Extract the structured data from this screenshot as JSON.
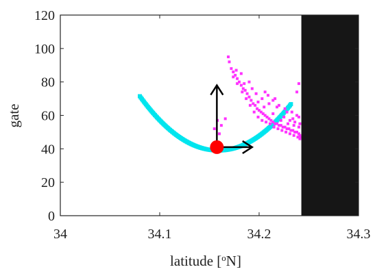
{
  "chart_data": {
    "type": "scatter",
    "xlabel": "latitude [",
    "xlabel_sup": "o",
    "xlabel_suffix": "N]",
    "ylabel": "gate",
    "xlim": [
      34,
      34.3
    ],
    "ylim": [
      0,
      120
    ],
    "xticks": [
      "34",
      "34.1",
      "34.2",
      "34.3"
    ],
    "xtick_values": [
      34,
      34.1,
      34.2,
      34.3
    ],
    "yticks": [
      "0",
      "20",
      "40",
      "60",
      "80",
      "100",
      "120"
    ],
    "ytick_values": [
      0,
      20,
      40,
      60,
      80,
      100,
      120
    ],
    "grid": false,
    "series": [
      {
        "kind": "parabola-curve",
        "color": "#00e5ee",
        "vertex": [
          34.159,
          39
        ],
        "coef": 5200,
        "x_range": [
          34.08,
          34.232
        ]
      },
      {
        "kind": "scatter-cloud",
        "color": "#ff33ff",
        "points": [
          [
            34.169,
            95
          ],
          [
            34.17,
            92
          ],
          [
            34.172,
            88
          ],
          [
            34.174,
            86
          ],
          [
            34.176,
            84
          ],
          [
            34.178,
            82
          ],
          [
            34.18,
            80
          ],
          [
            34.182,
            78
          ],
          [
            34.184,
            76
          ],
          [
            34.186,
            75
          ],
          [
            34.188,
            73
          ],
          [
            34.19,
            71
          ],
          [
            34.192,
            69
          ],
          [
            34.194,
            67
          ],
          [
            34.196,
            66
          ],
          [
            34.198,
            64
          ],
          [
            34.2,
            63
          ],
          [
            34.202,
            62
          ],
          [
            34.204,
            61
          ],
          [
            34.206,
            60
          ],
          [
            34.208,
            59
          ],
          [
            34.21,
            58
          ],
          [
            34.212,
            57
          ],
          [
            34.214,
            56
          ],
          [
            34.216,
            55
          ],
          [
            34.218,
            55
          ],
          [
            34.22,
            54
          ],
          [
            34.222,
            54
          ],
          [
            34.224,
            53
          ],
          [
            34.226,
            53
          ],
          [
            34.228,
            52
          ],
          [
            34.23,
            52
          ],
          [
            34.232,
            51
          ],
          [
            34.234,
            51
          ],
          [
            34.236,
            50
          ],
          [
            34.238,
            50
          ],
          [
            34.24,
            49
          ],
          [
            34.241,
            48
          ],
          [
            34.242,
            47
          ],
          [
            34.174,
            83
          ],
          [
            34.178,
            79
          ],
          [
            34.183,
            74
          ],
          [
            34.187,
            70
          ],
          [
            34.191,
            66
          ],
          [
            34.195,
            62
          ],
          [
            34.199,
            59
          ],
          [
            34.203,
            57
          ],
          [
            34.207,
            56
          ],
          [
            34.211,
            55
          ],
          [
            34.215,
            53
          ],
          [
            34.219,
            52
          ],
          [
            34.223,
            51
          ],
          [
            34.227,
            50
          ],
          [
            34.231,
            49
          ],
          [
            34.235,
            48
          ],
          [
            34.239,
            47
          ],
          [
            34.241,
            46
          ],
          [
            34.185,
            79
          ],
          [
            34.193,
            76
          ],
          [
            34.203,
            70
          ],
          [
            34.21,
            67
          ],
          [
            34.218,
            65
          ],
          [
            34.226,
            64
          ],
          [
            34.233,
            62
          ],
          [
            34.238,
            60
          ],
          [
            34.209,
            72
          ],
          [
            34.214,
            69
          ],
          [
            34.22,
            66
          ],
          [
            34.228,
            62
          ],
          [
            34.236,
            56
          ],
          [
            34.158,
            57
          ],
          [
            34.155,
            52
          ],
          [
            34.16,
            49
          ],
          [
            34.166,
            58
          ],
          [
            34.162,
            54
          ],
          [
            34.199,
            68
          ],
          [
            34.205,
            65
          ],
          [
            34.214,
            61
          ],
          [
            34.222,
            57
          ],
          [
            34.229,
            55
          ],
          [
            34.235,
            54
          ],
          [
            34.24,
            53
          ],
          [
            34.241,
            55
          ],
          [
            34.24,
            59
          ],
          [
            34.238,
            74
          ],
          [
            34.24,
            79
          ],
          [
            34.206,
            74
          ],
          [
            34.216,
            70
          ],
          [
            34.234,
            58
          ],
          [
            34.182,
            85
          ],
          [
            34.177,
            87
          ],
          [
            34.19,
            80
          ],
          [
            34.197,
            73
          ],
          [
            34.225,
            59
          ],
          [
            34.231,
            57
          ]
        ]
      }
    ],
    "marker": {
      "kind": "red-dot",
      "color": "#ff0000",
      "point": [
        34.1575,
        41
      ]
    },
    "arrows": {
      "color": "#000000",
      "origin": [
        34.1575,
        41
      ],
      "up_to": [
        34.1575,
        78
      ],
      "right_to": [
        34.193,
        41
      ]
    },
    "blocked_region": {
      "color": "#161616",
      "x_range": [
        34.2425,
        34.3
      ],
      "y_range": [
        0,
        120
      ]
    }
  }
}
